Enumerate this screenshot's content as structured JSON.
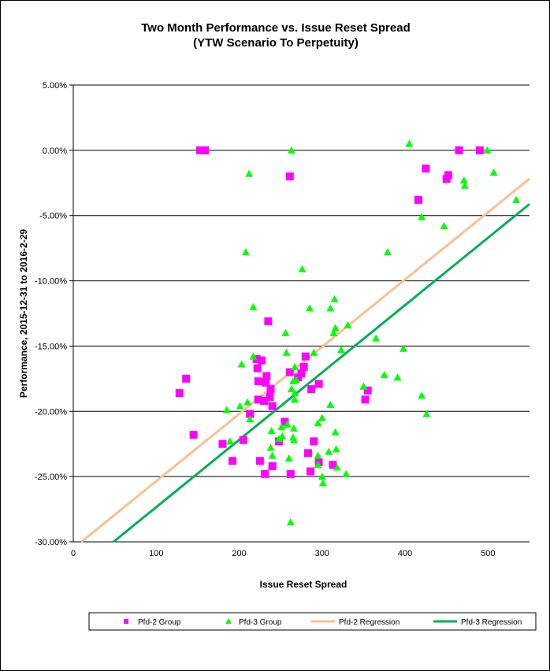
{
  "chart_data": {
    "type": "scatter",
    "title": "Two Month Performance vs. Issue Reset Spread",
    "subtitle": "(YTW Scenario To Perpetuity)",
    "xlabel": "Issue Reset Spread",
    "ylabel": "Performance, 2015-12-31  to 2016-2-29",
    "xlim": [
      0,
      550
    ],
    "ylim": [
      -30,
      5
    ],
    "xticks": [
      0,
      100,
      200,
      300,
      400,
      500
    ],
    "xtick_labels": [
      "0",
      "100",
      "200",
      "300",
      "400",
      "500"
    ],
    "yticks": [
      5,
      0,
      -5,
      -10,
      -15,
      -20,
      -25,
      -30
    ],
    "ytick_labels": [
      "5.00%",
      "0.00%",
      "-5.00%",
      "-10.00%",
      "-15.00%",
      "-20.00%",
      "-25.00%",
      "-30.00%"
    ],
    "grid": "horizontal",
    "legend_placement": "bottom",
    "series": [
      {
        "name": "Pfd-2 Group",
        "marker": "square",
        "color": "#FF00FF",
        "points": [
          [
            153,
            0
          ],
          [
            159,
            0
          ],
          [
            465,
            0
          ],
          [
            490,
            0
          ],
          [
            261,
            -2.0
          ],
          [
            425,
            -1.4
          ],
          [
            452,
            -1.9
          ],
          [
            450,
            -2.2
          ],
          [
            416,
            -3.8
          ],
          [
            235,
            -13.1
          ],
          [
            136,
            -17.5
          ],
          [
            128,
            -18.6
          ],
          [
            145,
            -21.8
          ],
          [
            221,
            -16.0
          ],
          [
            227,
            -16.1
          ],
          [
            222,
            -16.7
          ],
          [
            233,
            -17.3
          ],
          [
            223,
            -17.7
          ],
          [
            232,
            -17.8
          ],
          [
            238,
            -18.3
          ],
          [
            237,
            -18.9
          ],
          [
            223,
            -19.1
          ],
          [
            230,
            -19.2
          ],
          [
            240,
            -19.6
          ],
          [
            213,
            -20.2
          ],
          [
            280,
            -15.8
          ],
          [
            278,
            -16.6
          ],
          [
            261,
            -17.0
          ],
          [
            275,
            -17.1
          ],
          [
            271,
            -17.4
          ],
          [
            296,
            -17.9
          ],
          [
            287,
            -18.3
          ],
          [
            180,
            -22.5
          ],
          [
            205,
            -22.2
          ],
          [
            255,
            -20.8
          ],
          [
            248,
            -22.3
          ],
          [
            290,
            -22.3
          ],
          [
            192,
            -23.8
          ],
          [
            225,
            -23.8
          ],
          [
            240,
            -24.2
          ],
          [
            231,
            -24.8
          ],
          [
            262,
            -24.8
          ],
          [
            283,
            -23.2
          ],
          [
            296,
            -23.9
          ],
          [
            286,
            -24.6
          ],
          [
            313,
            -24.1
          ],
          [
            355,
            -18.4
          ],
          [
            352,
            -19.1
          ]
        ]
      },
      {
        "name": "Pfd-3 Group",
        "marker": "triangle",
        "color": "#00FF00",
        "points": [
          [
            263,
            0
          ],
          [
            405,
            0.5
          ],
          [
            499,
            0
          ],
          [
            507,
            -1.7
          ],
          [
            471,
            -2.3
          ],
          [
            472,
            -2.7
          ],
          [
            212,
            -1.8
          ],
          [
            420,
            -5.1
          ],
          [
            447,
            -5.8
          ],
          [
            534,
            -3.8
          ],
          [
            379,
            -7.8
          ],
          [
            208,
            -7.8
          ],
          [
            276,
            -9.1
          ],
          [
            315,
            -11.4
          ],
          [
            285,
            -12.1
          ],
          [
            217,
            -12.0
          ],
          [
            310,
            -12.1
          ],
          [
            256,
            -14.0
          ],
          [
            316,
            -13.6
          ],
          [
            314,
            -14.0
          ],
          [
            331,
            -13.4
          ],
          [
            217,
            -15.8
          ],
          [
            257,
            -15.5
          ],
          [
            290,
            -15.5
          ],
          [
            323,
            -15.3
          ],
          [
            203,
            -16.4
          ],
          [
            267,
            -16.6
          ],
          [
            265,
            -17.7
          ],
          [
            269,
            -17.6
          ],
          [
            263,
            -18.3
          ],
          [
            267,
            -18.6
          ],
          [
            267,
            -19.1
          ],
          [
            310,
            -19.5
          ],
          [
            185,
            -19.9
          ],
          [
            201,
            -19.6
          ],
          [
            210,
            -19.3
          ],
          [
            213,
            -20.6
          ],
          [
            300,
            -20.5
          ],
          [
            295,
            -20.9
          ],
          [
            239,
            -21.5
          ],
          [
            251,
            -21.2
          ],
          [
            258,
            -21.0
          ],
          [
            266,
            -21.3
          ],
          [
            316,
            -21.6
          ],
          [
            248,
            -22.1
          ],
          [
            252,
            -21.9
          ],
          [
            265,
            -22.0
          ],
          [
            266,
            -22.2
          ],
          [
            189,
            -22.3
          ],
          [
            238,
            -22.8
          ],
          [
            240,
            -23.4
          ],
          [
            260,
            -23.6
          ],
          [
            295,
            -23.4
          ],
          [
            308,
            -23.1
          ],
          [
            317,
            -22.9
          ],
          [
            295,
            -24.1
          ],
          [
            318,
            -24.3
          ],
          [
            329,
            -24.8
          ],
          [
            300,
            -25.0
          ],
          [
            301,
            -25.5
          ],
          [
            262,
            -28.5
          ],
          [
            365,
            -14.4
          ],
          [
            398,
            -15.2
          ],
          [
            375,
            -17.2
          ],
          [
            391,
            -17.4
          ],
          [
            350,
            -18.1
          ],
          [
            420,
            -18.8
          ],
          [
            426,
            -20.2
          ]
        ]
      },
      {
        "name": "Pfd-2 Regression",
        "type": "line",
        "color": "#FAC090",
        "slope": 0.0515,
        "intercept": -30.5
      },
      {
        "name": "Pfd-3 Regression",
        "type": "line",
        "color": "#00B050",
        "slope": 0.0516,
        "intercept": -32.5
      }
    ]
  }
}
